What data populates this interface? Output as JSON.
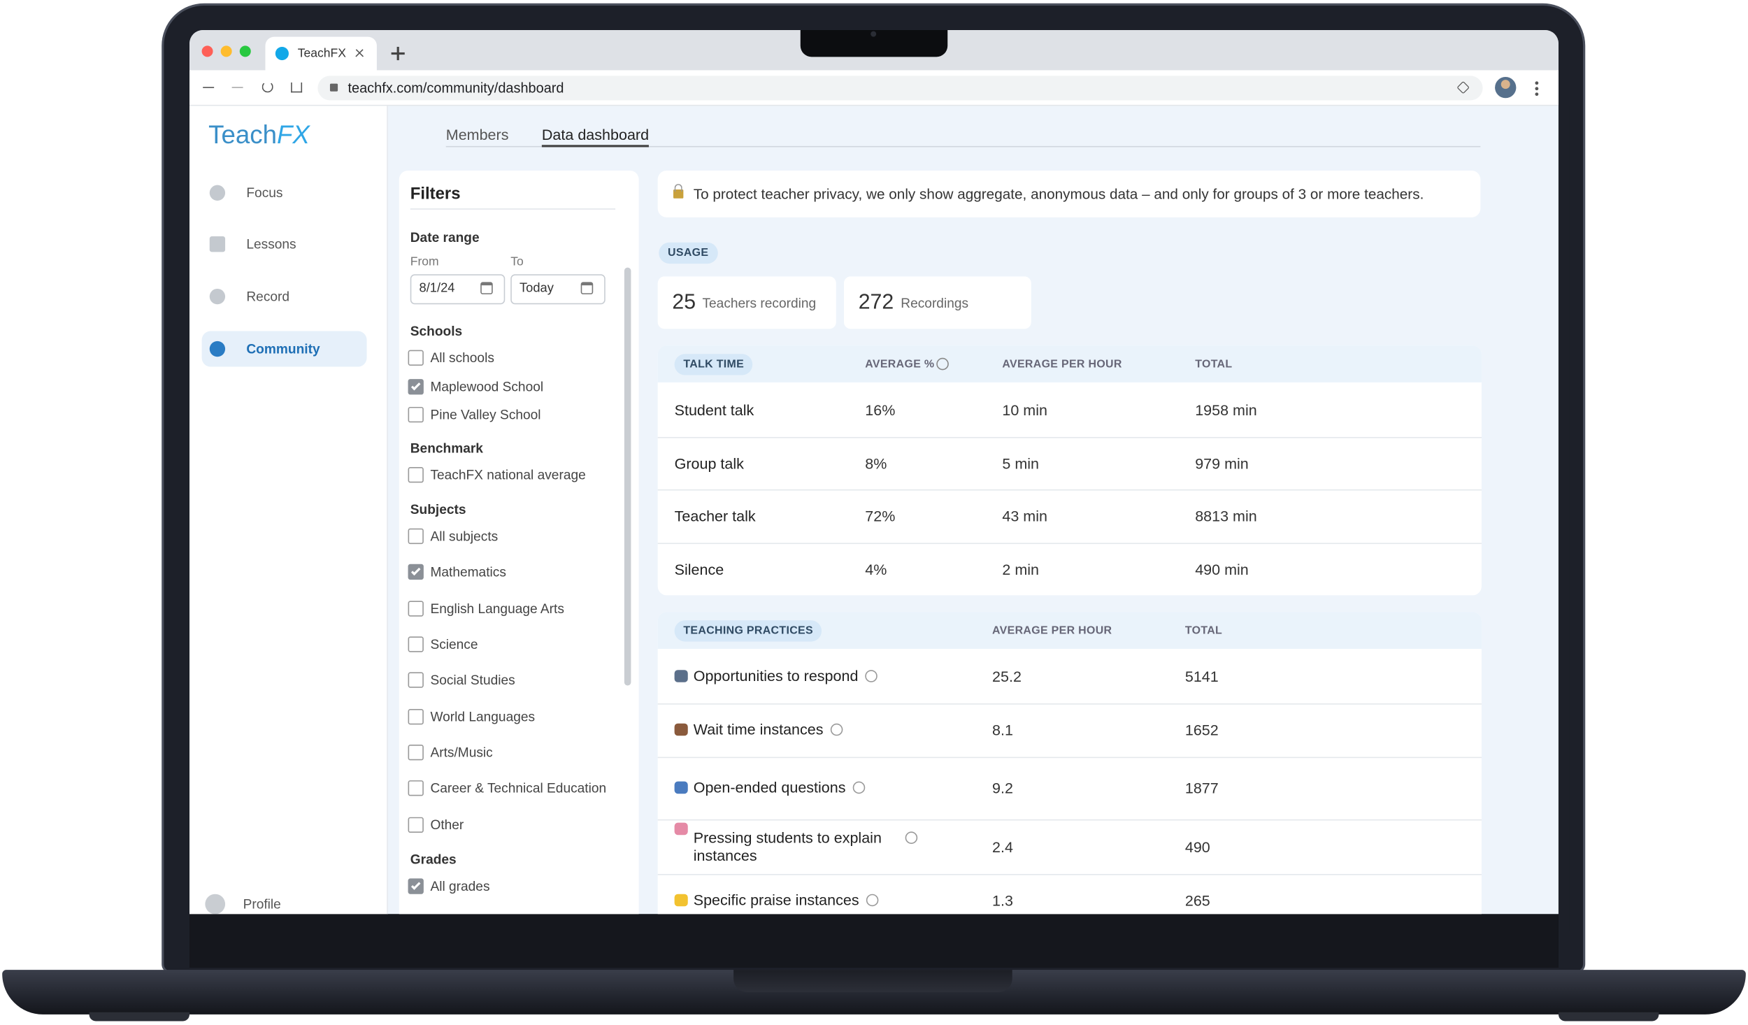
{
  "browser": {
    "tab_title": "TeachFX",
    "url": "teachfx.com/community/dashboard"
  },
  "sidebar": {
    "logo_main": "Teach",
    "logo_accent": "FX",
    "nav": [
      {
        "label": "Focus"
      },
      {
        "label": "Lessons"
      },
      {
        "label": "Record"
      },
      {
        "label": "Community",
        "active": true
      }
    ],
    "profile": "Profile"
  },
  "tabs": [
    {
      "label": "Members"
    },
    {
      "label": "Data dashboard",
      "active": true
    }
  ],
  "filters": {
    "title": "Filters",
    "date_range": {
      "label": "Date range",
      "from_label": "From",
      "from": "8/1/24",
      "to_label": "To",
      "to": "Today"
    },
    "groups": [
      {
        "title": "Schools",
        "options": [
          {
            "label": "All schools",
            "checked": false
          },
          {
            "label": "Maplewood School",
            "checked": true
          },
          {
            "label": "Pine Valley School",
            "checked": false
          }
        ]
      },
      {
        "title": "Benchmark",
        "options": [
          {
            "label": "TeachFX national average",
            "checked": false
          }
        ]
      },
      {
        "title": "Subjects",
        "options": [
          {
            "label": "All subjects",
            "checked": false
          },
          {
            "label": "Mathematics",
            "checked": true
          },
          {
            "label": "English Language Arts",
            "checked": false
          },
          {
            "label": "Science",
            "checked": false
          },
          {
            "label": "Social Studies",
            "checked": false
          },
          {
            "label": "World Languages",
            "checked": false
          },
          {
            "label": "Arts/Music",
            "checked": false
          },
          {
            "label": "Career & Technical Education",
            "checked": false
          },
          {
            "label": "Other",
            "checked": false
          }
        ]
      },
      {
        "title": "Grades",
        "options": [
          {
            "label": "All grades",
            "checked": true
          }
        ]
      }
    ]
  },
  "notice": "To protect teacher privacy, we only show aggregate, anonymous data – and only for groups of 3 or more teachers.",
  "usage": {
    "badge": "USAGE",
    "stats": [
      {
        "value": 25,
        "label": "Teachers recording"
      },
      {
        "value": 272,
        "label": "Recordings"
      }
    ]
  },
  "talk_time": {
    "columns": [
      "TALK TIME",
      "AVERAGE %",
      "AVERAGE PER HOUR",
      "TOTAL"
    ],
    "rows": [
      [
        "Student talk",
        "16%",
        "10 min",
        "1958 min"
      ],
      [
        "Group talk",
        "8%",
        "5 min",
        "979 min"
      ],
      [
        "Teacher talk",
        "72%",
        "43 min",
        "8813 min"
      ],
      [
        "Silence",
        "4%",
        "2 min",
        "490  min"
      ]
    ]
  },
  "teaching_practices": {
    "columns": [
      "TEACHING PRACTICES",
      "AVERAGE PER HOUR",
      "TOTAL"
    ],
    "rows": [
      {
        "icon_color": "#5b6f8a",
        "label": "Opportunities to respond",
        "average": "25.2",
        "total": "5141"
      },
      {
        "icon_color": "#8a5a3c",
        "label": "Wait time instances",
        "average": "8.1",
        "total": "1652"
      },
      {
        "icon_color": "#4a7bbf",
        "label": "Open-ended questions",
        "average": "9.2",
        "total": "1877"
      },
      {
        "icon_color": "#e58aa6",
        "label": "Pressing students to explain instances",
        "average": "2.4",
        "total": "490"
      },
      {
        "icon_color": "#f2c230",
        "label": "Specific praise instances",
        "average": "1.3",
        "total": "265"
      }
    ]
  }
}
